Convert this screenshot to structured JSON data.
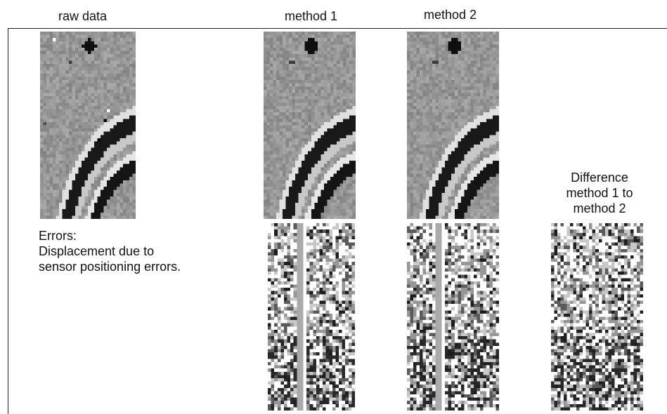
{
  "headers": {
    "raw": "raw data",
    "method1": "method 1",
    "method2": "method 2"
  },
  "difference_label": [
    "Difference",
    "method 1 to",
    "method 2"
  ],
  "errors_text": [
    "Errors:",
    "Displacement due to",
    "sensor positioning errors."
  ],
  "colors": {
    "frame": "#222222",
    "background": "#ffffff"
  }
}
